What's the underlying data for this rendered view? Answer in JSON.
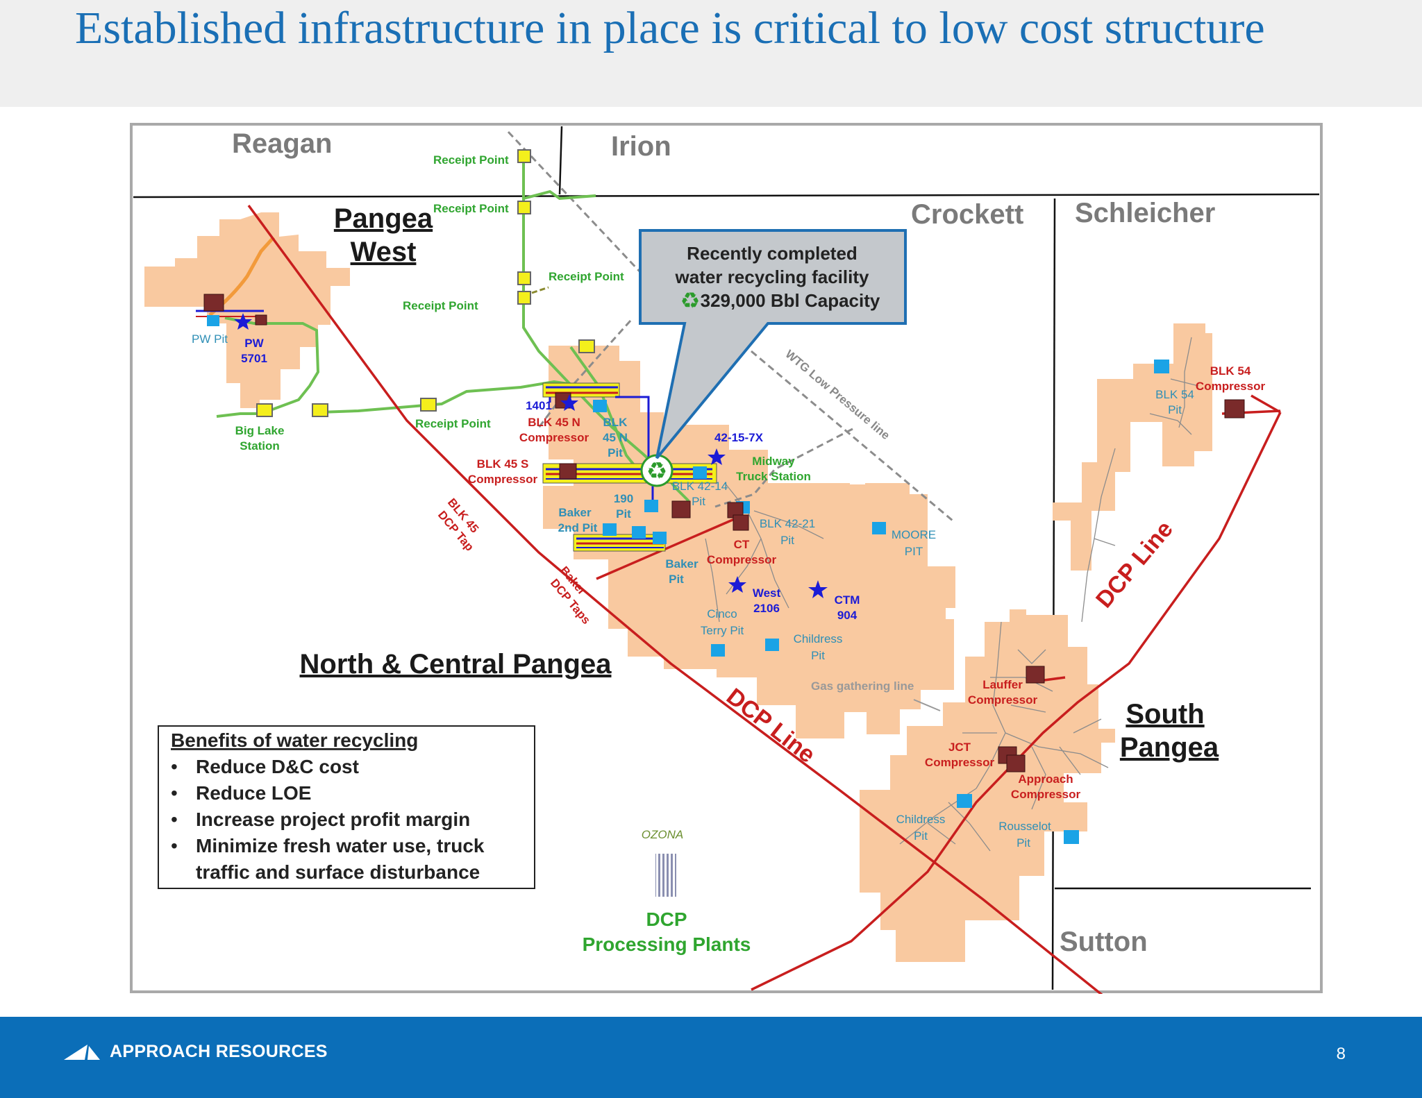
{
  "slide": {
    "title": "Established infrastructure in place is critical to low cost structure",
    "page_number": "8",
    "brand_name": "APPROACH RESOURCES"
  },
  "map": {
    "counties": [
      "Reagan",
      "Irion",
      "Crockett",
      "Schleicher",
      "Sutton"
    ],
    "regions": {
      "pangea_west_1": "Pangea",
      "pangea_west_2": "West",
      "north_central": "North & Central Pangea",
      "south_1": "South",
      "south_2": "Pangea"
    },
    "callout": {
      "line1": "Recently completed",
      "line2": "water recycling facility",
      "line3": "329,000 Bbl Capacity",
      "icon": "recycle-icon"
    },
    "benefits": {
      "heading": "Benefits of water recycling",
      "items": [
        "Reduce D&C cost",
        "Reduce LOE",
        "Increase project profit margin",
        "Minimize fresh water use, truck",
        "traffic and surface disturbance"
      ]
    },
    "pipelines": {
      "dcp_line": "DCP Line",
      "wtg_line": "WTG Low Pressure line",
      "gas_line": "Gas gathering line",
      "blk45_tap_1": "BLK 45",
      "blk45_tap_2": "DCP Tap",
      "baker_taps_1": "Baker",
      "baker_taps_2": "DCP Taps"
    },
    "receipt_points": {
      "label": "Receipt Point"
    },
    "stations": {
      "big_lake_1": "Big Lake",
      "big_lake_2": "Station",
      "midway_1": "Midway",
      "midway_2": "Truck Station"
    },
    "compressors": {
      "blk45n_1": "BLK 45 N",
      "blk45n_2": "Compressor",
      "blk45s_1": "BLK 45 S",
      "blk45s_2": "Compressor",
      "ct_1": "CT",
      "ct_2": "Compressor",
      "blk54_1": "BLK 54",
      "blk54_2": "Compressor",
      "lauffer_1": "Lauffer",
      "lauffer_2": "Compressor",
      "jct_1": "JCT",
      "jct_2": "Compressor",
      "approach_1": "Approach",
      "approach_2": "Compressor"
    },
    "pits": {
      "pw": "PW Pit",
      "blk45n_1": "BLK",
      "blk45n_2": "45 N",
      "blk45n_3": "Pit",
      "blk4214_1": "BLK 42-14",
      "blk4214_2": "Pit",
      "p190_1": "190",
      "p190_2": "Pit",
      "baker2_1": "Baker",
      "baker2_2": "2nd Pit",
      "baker_1": "Baker",
      "baker_2": "Pit",
      "blk4221_1": "BLK 42-21",
      "blk4221_2": "Pit",
      "moore_1": "MOORE",
      "moore_2": "PIT",
      "cinco_1": "Cinco",
      "cinco_2": "Terry Pit",
      "childress_c_1": "Childress",
      "childress_c_2": "Pit",
      "blk54_1": "BLK 54",
      "blk54_2": "Pit",
      "childress_s_1": "Childress",
      "childress_s_2": "Pit",
      "rousselot_1": "Rousselot",
      "rousselot_2": "Pit"
    },
    "wells": {
      "pw5701_1": "PW",
      "pw5701_2": "5701",
      "w1401": "1401",
      "w42157x": "42-15-7X",
      "west2106_1": "West",
      "west2106_2": "2106",
      "ctm904_1": "CTM",
      "ctm904_2": "904"
    },
    "plants": {
      "ozona": "OZONA",
      "dcp_1": "DCP",
      "dcp_2": "Processing Plants"
    },
    "colors": {
      "acreage": "#f9c9a0",
      "dcp_line": "#c81e1e",
      "gathering": "#6ec052",
      "water_line": "#1b1bd6",
      "pit": "#1aa3e6",
      "compressor": "#7a2a2a",
      "receipt": "#f4ef1c",
      "callout": "#c4c8cc"
    }
  }
}
